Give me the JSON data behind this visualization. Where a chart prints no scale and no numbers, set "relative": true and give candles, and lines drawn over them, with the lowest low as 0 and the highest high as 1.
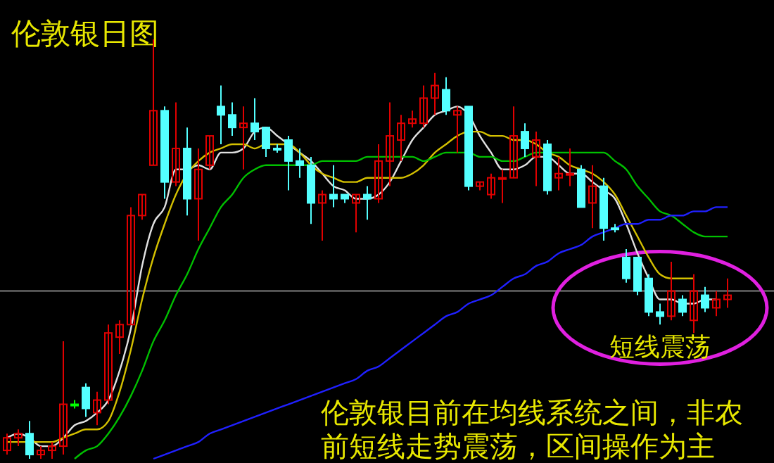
{
  "chart_data": {
    "type": "candlestick",
    "title": "伦敦银日图",
    "relative": true,
    "annotations": [
      "短线震荡",
      "伦敦银目前在均线系统之间，非农前短线走势震荡，区间操作为主"
    ],
    "categories": [
      null,
      null,
      null,
      null,
      null,
      null,
      null,
      null,
      null,
      null,
      null,
      null,
      null,
      null,
      null,
      null,
      null,
      null,
      null,
      null,
      null,
      null,
      null,
      null,
      null,
      null,
      null,
      null,
      null,
      null,
      null,
      null,
      null,
      null,
      null,
      null,
      null,
      null,
      null,
      null,
      null,
      null,
      null,
      null,
      null,
      null,
      null,
      null,
      null,
      null,
      null,
      null,
      null,
      null,
      null,
      null,
      null,
      null,
      null,
      null,
      null,
      null,
      null,
      null,
      null
    ],
    "ohlc": [
      [
        0.02,
        0.06,
        0.01,
        0.05
      ],
      [
        0.05,
        0.07,
        0.03,
        0.06
      ],
      [
        0.06,
        0.09,
        0,
        0.01
      ],
      [
        0.01,
        0.03,
        0,
        0.02
      ],
      [
        0.02,
        0.04,
        0,
        0.03
      ],
      [
        0.03,
        0.28,
        0.01,
        0.13
      ],
      [
        0.13,
        0.14,
        0.12,
        0.13
      ],
      [
        0.17,
        0.18,
        0.1,
        0.12
      ],
      [
        0.11,
        0.16,
        0.08,
        0.14
      ],
      [
        0.14,
        0.32,
        0.13,
        0.3
      ],
      [
        0.29,
        0.33,
        0.25,
        0.32
      ],
      [
        0.32,
        0.6,
        0.32,
        0.58
      ],
      [
        0.58,
        0.63,
        0.57,
        0.63
      ],
      [
        0.7,
        1,
        0.7,
        0.83
      ],
      [
        0.83,
        0.84,
        0.62,
        0.66
      ],
      [
        0.66,
        0.85,
        0.65,
        0.74
      ],
      [
        0.74,
        0.79,
        0.58,
        0.62
      ],
      [
        0.62,
        0.74,
        0.52,
        0.69
      ],
      [
        0.7,
        0.77,
        0.69,
        0.77
      ],
      [
        0.84,
        0.89,
        0.75,
        0.82
      ],
      [
        0.82,
        0.85,
        0.77,
        0.79
      ],
      [
        0.79,
        0.84,
        0.69,
        0.8
      ],
      [
        0.8,
        0.86,
        0.76,
        0.78
      ],
      [
        0.79,
        0.79,
        0.72,
        0.74
      ],
      [
        0.74,
        0.75,
        0.73,
        0.74
      ],
      [
        0.76,
        0.77,
        0.64,
        0.71
      ],
      [
        0.71,
        0.74,
        0.67,
        0.7
      ],
      [
        0.7,
        0.72,
        0.56,
        0.61
      ],
      [
        0.61,
        0.64,
        0.52,
        0.63
      ],
      [
        0.63,
        0.7,
        0.6,
        0.62
      ],
      [
        0.63,
        0.63,
        0.61,
        0.62
      ],
      [
        0.61,
        0.63,
        0.54,
        0.63
      ],
      [
        0.63,
        0.65,
        0.57,
        0.62
      ],
      [
        0.62,
        0.75,
        0.61,
        0.71
      ],
      [
        0.71,
        0.85,
        0.65,
        0.77
      ],
      [
        0.76,
        0.82,
        0.71,
        0.8
      ],
      [
        0.8,
        0.83,
        0.79,
        0.81
      ],
      [
        0.8,
        0.89,
        0.79,
        0.86
      ],
      [
        0.86,
        0.92,
        0.82,
        0.89
      ],
      [
        0.88,
        0.91,
        0.82,
        0.83
      ],
      [
        0.82,
        0.84,
        0.73,
        0.83
      ],
      [
        0.84,
        0.84,
        0.64,
        0.65
      ],
      [
        0.65,
        0.66,
        0.64,
        0.66
      ],
      [
        0.63,
        0.68,
        0.62,
        0.67
      ],
      [
        0.67,
        0.69,
        0.61,
        0.67
      ],
      [
        0.67,
        0.84,
        0.67,
        0.77
      ],
      [
        0.78,
        0.8,
        0.72,
        0.74
      ],
      [
        0.72,
        0.78,
        0.65,
        0.76
      ],
      [
        0.75,
        0.76,
        0.63,
        0.64
      ],
      [
        0.67,
        0.72,
        0.64,
        0.68
      ],
      [
        0.68,
        0.74,
        0.65,
        0.68
      ],
      [
        0.69,
        0.7,
        0.6,
        0.6
      ],
      [
        0.61,
        0.7,
        0.55,
        0.65
      ],
      [
        0.65,
        0.67,
        0.52,
        0.55
      ],
      [
        0.55,
        0.56,
        0.54,
        0.55
      ],
      [
        0.48,
        0.5,
        0.42,
        0.43
      ],
      [
        0.48,
        0.48,
        0.39,
        0.4
      ],
      [
        0.43,
        0.44,
        0.34,
        0.35
      ],
      [
        0.35,
        0.37,
        0.32,
        0.34
      ],
      [
        0.34,
        0.47,
        0.33,
        0.4
      ],
      [
        0.38,
        0.39,
        0.34,
        0.35
      ],
      [
        0.33,
        0.44,
        0.3,
        0.4
      ],
      [
        0.39,
        0.41,
        0.35,
        0.36
      ],
      [
        0.36,
        0.4,
        0.34,
        0.38
      ],
      [
        0.38,
        0.43,
        0.36,
        0.39
      ]
    ],
    "colors": [
      "#e00000",
      "#e00000",
      "#54ffff",
      "#e00000",
      "#e00000",
      "#e00000",
      "#00ff00",
      "#54ffff",
      "#e00000",
      "#e00000",
      "#e00000",
      "#e00000",
      "#e00000",
      "#e00000",
      "#54ffff",
      "#e00000",
      "#54ffff",
      "#e00000",
      "#e00000",
      "#54ffff",
      "#54ffff",
      "#e00000",
      "#54ffff",
      "#54ffff",
      "#54ffff",
      "#54ffff",
      "#54ffff",
      "#54ffff",
      "#e00000",
      "#54ffff",
      "#54ffff",
      "#e00000",
      "#54ffff",
      "#e00000",
      "#e00000",
      "#e00000",
      "#e00000",
      "#e00000",
      "#e00000",
      "#54ffff",
      "#e00000",
      "#54ffff",
      "#e00000",
      "#e00000",
      "#e00000",
      "#e00000",
      "#54ffff",
      "#e00000",
      "#54ffff",
      "#e00000",
      "#e00000",
      "#54ffff",
      "#e00000",
      "#54ffff",
      "#54ffff",
      "#54ffff",
      "#54ffff",
      "#54ffff",
      "#54ffff",
      "#e00000",
      "#54ffff",
      "#e00000",
      "#54ffff",
      "#e00000",
      "#e00000"
    ],
    "series": [
      {
        "type": "line",
        "color": "#e0e0e0",
        "values": [
          0.05,
          0.06,
          0.05,
          0.03,
          0.03,
          0.05,
          0.08,
          0.09,
          0.11,
          0.14,
          0.21,
          0.31,
          0.46,
          0.56,
          0.6,
          0.69,
          0.69,
          0.7,
          0.69,
          0.73,
          0.73,
          0.74,
          0.78,
          0.79,
          0.77,
          0.75,
          0.73,
          0.71,
          0.68,
          0.65,
          0.64,
          0.62,
          0.62,
          0.63,
          0.66,
          0.71,
          0.76,
          0.79,
          0.82,
          0.83,
          0.84,
          0.82,
          0.77,
          0.73,
          0.69,
          0.69,
          0.7,
          0.72,
          0.72,
          0.7,
          0.68,
          0.68,
          0.66,
          0.64,
          0.62,
          0.56,
          0.49,
          0.43,
          0.38,
          0.38,
          0.37,
          0.37,
          0.38,
          0.38,
          null
        ]
      },
      {
        "type": "line",
        "color": "#d4c000",
        "values": [
          0.04,
          0.04,
          0.04,
          0.04,
          0.04,
          0.05,
          0.06,
          0.07,
          0.07,
          0.09,
          0.16,
          0.26,
          0.38,
          0.48,
          0.56,
          0.63,
          0.68,
          0.71,
          0.73,
          0.74,
          0.75,
          0.75,
          0.74,
          0.75,
          0.75,
          0.75,
          0.73,
          0.7,
          0.68,
          0.67,
          0.66,
          0.66,
          0.67,
          0.67,
          0.67,
          0.67,
          0.68,
          0.7,
          0.73,
          0.75,
          0.77,
          0.78,
          0.78,
          0.77,
          0.77,
          0.76,
          0.76,
          0.75,
          0.73,
          0.72,
          0.7,
          0.69,
          0.68,
          0.66,
          0.63,
          0.58,
          0.53,
          0.48,
          0.44,
          0.43,
          0.43,
          0.43,
          null,
          null,
          null
        ]
      },
      {
        "type": "line",
        "color": "#00c000",
        "values": [
          null,
          null,
          null,
          null,
          null,
          null,
          0,
          0.02,
          0.03,
          0.06,
          0.1,
          0.15,
          0.21,
          0.28,
          0.33,
          0.39,
          0.44,
          0.5,
          0.55,
          0.6,
          0.63,
          0.67,
          0.69,
          0.7,
          0.7,
          0.7,
          0.7,
          0.7,
          0.71,
          0.71,
          0.71,
          0.71,
          0.72,
          0.72,
          0.72,
          0.72,
          0.72,
          0.71,
          0.72,
          0.73,
          0.73,
          0.73,
          0.72,
          0.72,
          0.71,
          0.71,
          0.72,
          0.73,
          0.73,
          0.73,
          0.73,
          0.73,
          0.73,
          0.73,
          0.71,
          0.69,
          0.65,
          0.62,
          0.59,
          0.58,
          0.56,
          0.54,
          0.53,
          0.53,
          0.53
        ]
      },
      {
        "type": "line",
        "color": "#2020ff",
        "values": [
          null,
          null,
          null,
          null,
          null,
          null,
          null,
          null,
          null,
          null,
          null,
          null,
          null,
          0,
          0.01,
          0.02,
          0.03,
          0.04,
          0.06,
          0.07,
          0.08,
          0.09,
          0.1,
          0.11,
          0.12,
          0.13,
          0.14,
          0.15,
          0.16,
          0.17,
          0.18,
          0.19,
          0.21,
          0.22,
          0.24,
          0.26,
          0.28,
          0.3,
          0.32,
          0.34,
          0.35,
          0.37,
          0.38,
          0.39,
          0.41,
          0.43,
          0.44,
          0.46,
          0.47,
          0.49,
          0.5,
          0.51,
          0.53,
          0.54,
          0.55,
          0.56,
          0.56,
          0.57,
          0.57,
          0.58,
          0.58,
          0.59,
          0.59,
          0.6,
          0.6
        ]
      }
    ],
    "ref_lines": [
      {
        "axis": "y",
        "value": 0.4,
        "color": "#808080"
      }
    ]
  }
}
